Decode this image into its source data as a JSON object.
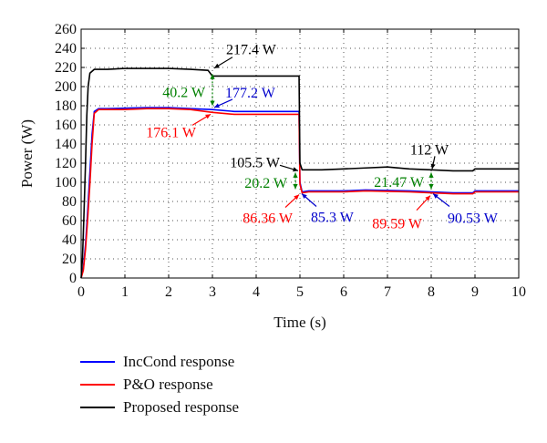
{
  "chart_data": {
    "type": "line",
    "xlabel": "Time (s)",
    "ylabel": "Power (W)",
    "xlim": [
      0,
      10
    ],
    "ylim": [
      0,
      260
    ],
    "xticks": [
      0,
      1,
      2,
      3,
      4,
      5,
      6,
      7,
      8,
      9,
      10
    ],
    "yticks": [
      0,
      20,
      40,
      60,
      80,
      100,
      120,
      140,
      160,
      180,
      200,
      220,
      240,
      260
    ],
    "grid": "dotted",
    "legend_placement": "below",
    "series": [
      {
        "name": "IncCond response",
        "color": "#0000ff",
        "points": [
          [
            0,
            0
          ],
          [
            0.05,
            10
          ],
          [
            0.1,
            35
          ],
          [
            0.15,
            70
          ],
          [
            0.2,
            110
          ],
          [
            0.25,
            150
          ],
          [
            0.3,
            174
          ],
          [
            0.4,
            177
          ],
          [
            0.6,
            177
          ],
          [
            1,
            177.5
          ],
          [
            1.5,
            178
          ],
          [
            2,
            178
          ],
          [
            2.5,
            177
          ],
          [
            3,
            176
          ],
          [
            3.5,
            174
          ],
          [
            4,
            174
          ],
          [
            4.5,
            174
          ],
          [
            4.98,
            174
          ],
          [
            5.0,
            100
          ],
          [
            5.05,
            90
          ],
          [
            5.2,
            91
          ],
          [
            6,
            91
          ],
          [
            6.5,
            92
          ],
          [
            7,
            91.5
          ],
          [
            7.5,
            91
          ],
          [
            8,
            90
          ],
          [
            8.5,
            89
          ],
          [
            8.95,
            89
          ],
          [
            9.0,
            91
          ],
          [
            9.5,
            91
          ],
          [
            10,
            91
          ]
        ]
      },
      {
        "name": "P&O response",
        "color": "#ff0000",
        "points": [
          [
            0,
            0
          ],
          [
            0.05,
            8
          ],
          [
            0.1,
            30
          ],
          [
            0.15,
            62
          ],
          [
            0.2,
            98
          ],
          [
            0.25,
            140
          ],
          [
            0.3,
            172
          ],
          [
            0.4,
            176
          ],
          [
            0.6,
            176
          ],
          [
            1,
            176
          ],
          [
            1.5,
            177
          ],
          [
            2,
            177
          ],
          [
            2.5,
            176
          ],
          [
            3,
            173
          ],
          [
            3.5,
            171
          ],
          [
            4,
            171
          ],
          [
            4.5,
            171
          ],
          [
            4.98,
            171
          ],
          [
            5.0,
            98
          ],
          [
            5.05,
            89
          ],
          [
            5.2,
            90
          ],
          [
            6,
            90
          ],
          [
            6.5,
            91
          ],
          [
            7,
            90.5
          ],
          [
            7.5,
            90
          ],
          [
            8,
            89
          ],
          [
            8.5,
            88
          ],
          [
            8.95,
            88
          ],
          [
            9.0,
            90
          ],
          [
            9.5,
            90
          ],
          [
            10,
            90
          ]
        ]
      },
      {
        "name": "Proposed response",
        "color": "#000000",
        "points": [
          [
            0,
            0
          ],
          [
            0.03,
            20
          ],
          [
            0.06,
            60
          ],
          [
            0.1,
            120
          ],
          [
            0.13,
            170
          ],
          [
            0.16,
            200
          ],
          [
            0.2,
            214
          ],
          [
            0.3,
            218
          ],
          [
            0.6,
            218
          ],
          [
            1,
            219
          ],
          [
            1.5,
            219
          ],
          [
            2,
            219
          ],
          [
            2.5,
            218
          ],
          [
            2.9,
            217
          ],
          [
            3.0,
            211
          ],
          [
            3.5,
            211
          ],
          [
            4,
            211
          ],
          [
            4.5,
            211
          ],
          [
            4.98,
            211
          ],
          [
            5.0,
            120
          ],
          [
            5.05,
            113
          ],
          [
            5.5,
            113
          ],
          [
            6,
            114
          ],
          [
            6.5,
            115
          ],
          [
            7,
            116
          ],
          [
            7.5,
            114
          ],
          [
            8,
            113
          ],
          [
            8.5,
            112
          ],
          [
            8.95,
            112
          ],
          [
            9.0,
            114
          ],
          [
            9.5,
            114
          ],
          [
            10,
            114
          ]
        ]
      }
    ],
    "annotations": [
      {
        "text": "217.4 W",
        "color": "#000000",
        "x": 3,
        "y": 217.4,
        "type": "arrow"
      },
      {
        "text": "40.2 W",
        "color": "#008000",
        "x": 3,
        "y": 195,
        "type": "double-arrow"
      },
      {
        "text": "177.2 W",
        "color": "#0000cc",
        "x": 3,
        "y": 177.2,
        "type": "arrow"
      },
      {
        "text": "176.1 W",
        "color": "#ff0000",
        "x": 3,
        "y": 173,
        "type": "arrow"
      },
      {
        "text": "105.5 W",
        "color": "#000000",
        "x": 5,
        "y": 105.5,
        "type": "arrow"
      },
      {
        "text": "20.2 W",
        "color": "#008000",
        "x": 5,
        "y": 100,
        "type": "double-arrow"
      },
      {
        "text": "86.36 W",
        "color": "#ff0000",
        "x": 5,
        "y": 89,
        "type": "arrow"
      },
      {
        "text": "85.3 W",
        "color": "#0000cc",
        "x": 5,
        "y": 90,
        "type": "arrow"
      },
      {
        "text": "112 W",
        "color": "#000000",
        "x": 8,
        "y": 112,
        "type": "arrow"
      },
      {
        "text": "21.47 W",
        "color": "#008000",
        "x": 8,
        "y": 101,
        "type": "double-arrow"
      },
      {
        "text": "89.59 W",
        "color": "#ff0000",
        "x": 8,
        "y": 88,
        "type": "arrow"
      },
      {
        "text": "90.53 W",
        "color": "#0000cc",
        "x": 8,
        "y": 90,
        "type": "arrow"
      }
    ]
  }
}
